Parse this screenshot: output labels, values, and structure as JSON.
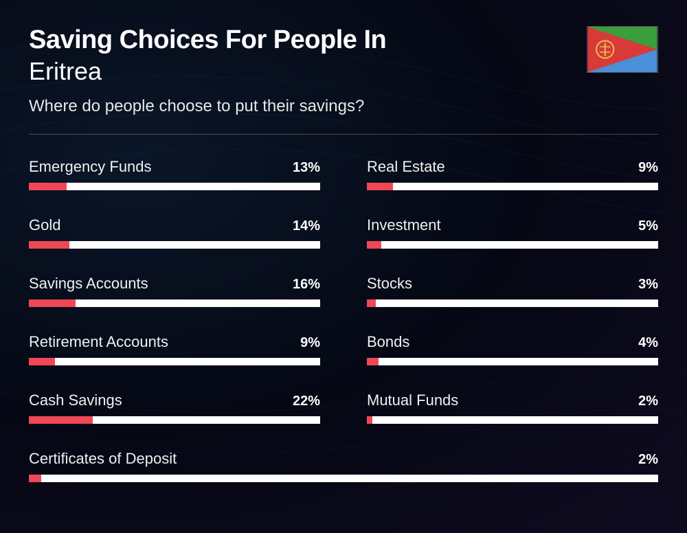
{
  "header": {
    "title_line1": "Saving Choices For People In",
    "title_line2": "Eritrea",
    "subtitle": "Where do people choose to put their savings?"
  },
  "style": {
    "bar_fill_color": "#f04757",
    "bar_track_color": "#ffffff",
    "text_color": "#ffffff",
    "bar_scale_max": 100
  },
  "items": [
    {
      "label": "Emergency Funds",
      "value": 13,
      "display": "13%",
      "col": 0
    },
    {
      "label": "Real Estate",
      "value": 9,
      "display": "9%",
      "col": 1
    },
    {
      "label": "Gold",
      "value": 14,
      "display": "14%",
      "col": 0
    },
    {
      "label": "Investment",
      "value": 5,
      "display": "5%",
      "col": 1
    },
    {
      "label": "Savings Accounts",
      "value": 16,
      "display": "16%",
      "col": 0
    },
    {
      "label": "Stocks",
      "value": 3,
      "display": "3%",
      "col": 1
    },
    {
      "label": "Retirement Accounts",
      "value": 9,
      "display": "9%",
      "col": 0
    },
    {
      "label": "Bonds",
      "value": 4,
      "display": "4%",
      "col": 1
    },
    {
      "label": "Cash Savings",
      "value": 22,
      "display": "22%",
      "col": 0
    },
    {
      "label": "Mutual Funds",
      "value": 2,
      "display": "2%",
      "col": 1
    },
    {
      "label": "Certificates of Deposit",
      "value": 2,
      "display": "2%",
      "full": true
    }
  ],
  "flag": {
    "top_color": "#3a9e3a",
    "bottom_color": "#4a8fd8",
    "triangle_color": "#d83a3a",
    "emblem_color": "#e8c44a"
  }
}
